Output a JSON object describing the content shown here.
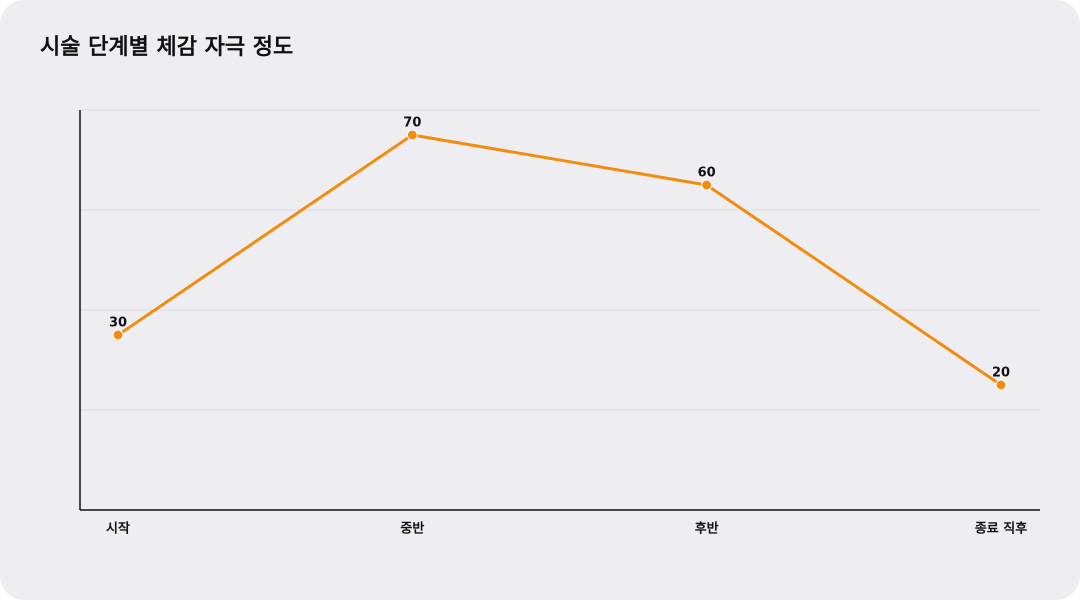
{
  "chart_data": {
    "type": "line",
    "title": "시술 단계별 체감 자극 정도",
    "categories": [
      "시작",
      "중반",
      "후반",
      "종료 직후"
    ],
    "values": [
      30,
      70,
      60,
      20
    ],
    "color": "#f28c0f",
    "ylim": [
      -5,
      75
    ],
    "grid": true
  }
}
